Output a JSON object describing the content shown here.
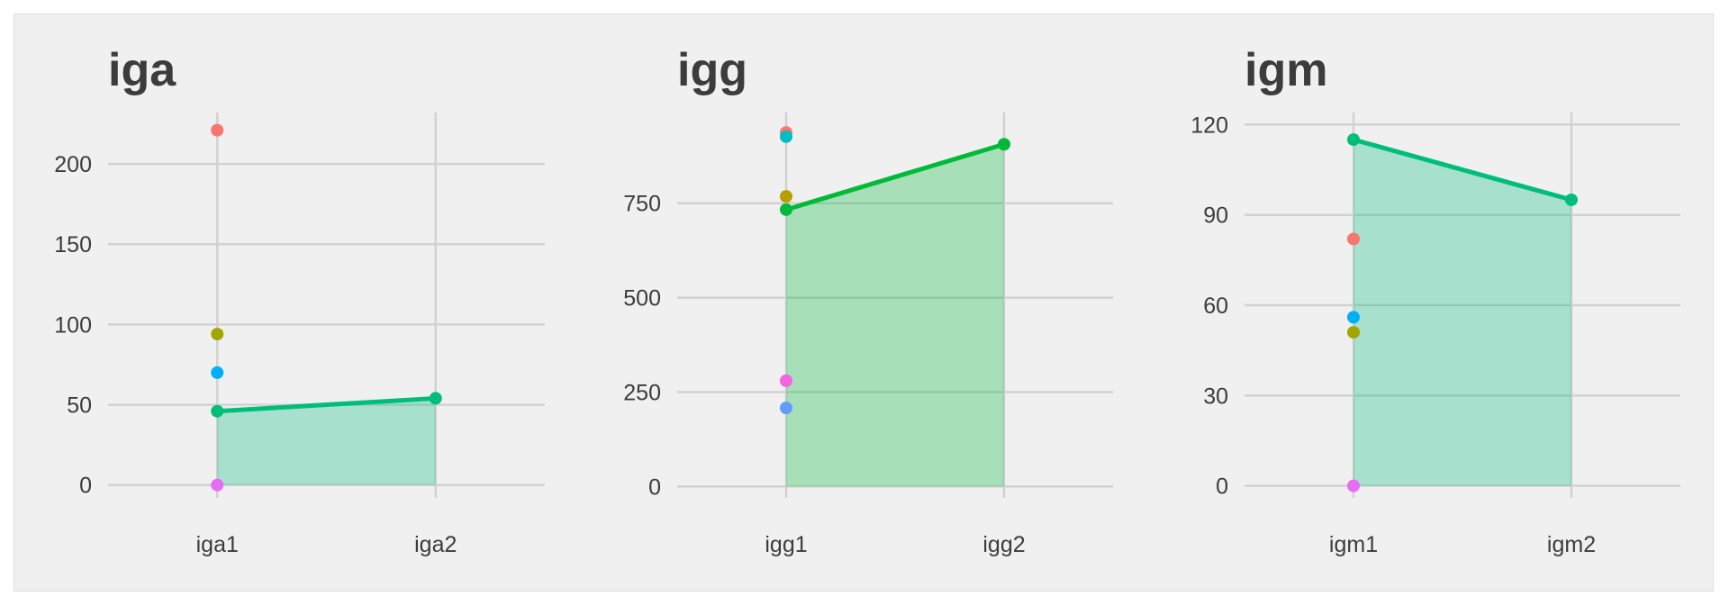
{
  "colors": {
    "background": "#f0f0f0",
    "grid": "#d2d2d2",
    "text": "#3c3c3c"
  },
  "chart_data": [
    {
      "type": "line",
      "title": "iga",
      "categories": [
        "iga1",
        "iga2"
      ],
      "ylim": [
        -8,
        232
      ],
      "yticks": [
        0,
        50,
        100,
        150,
        200
      ],
      "ytick_labels": [
        "0",
        "50",
        "100",
        "150",
        "200"
      ],
      "grid": true,
      "line": {
        "values": [
          46,
          54
        ],
        "color": "#00be79",
        "fill_color": "#00be79"
      },
      "points": [
        {
          "category": "iga1",
          "value": 221,
          "color": "#f8766d"
        },
        {
          "category": "iga1",
          "value": 94,
          "color": "#a3a500"
        },
        {
          "category": "iga1",
          "value": 70,
          "color": "#00b0f6"
        },
        {
          "category": "iga1",
          "value": 0,
          "color": "#e76bf3"
        }
      ]
    },
    {
      "type": "line",
      "title": "igg",
      "categories": [
        "igg1",
        "igg2"
      ],
      "ylim": [
        -30,
        990
      ],
      "yticks": [
        0,
        250,
        500,
        750
      ],
      "ytick_labels": [
        "0",
        "250",
        "500",
        "750"
      ],
      "grid": true,
      "line": {
        "values": [
          733,
          906
        ],
        "color": "#00ba38",
        "fill_color": "#00ba38"
      },
      "points": [
        {
          "category": "igg1",
          "value": 937,
          "color": "#f8766d"
        },
        {
          "category": "igg1",
          "value": 926,
          "color": "#00bfc4"
        },
        {
          "category": "igg1",
          "value": 768,
          "color": "#b79f00"
        },
        {
          "category": "igg1",
          "value": 280,
          "color": "#f564e3"
        },
        {
          "category": "igg1",
          "value": 208,
          "color": "#619cff"
        }
      ]
    },
    {
      "type": "line",
      "title": "igm",
      "categories": [
        "igm1",
        "igm2"
      ],
      "ylim": [
        -4,
        124
      ],
      "yticks": [
        0,
        30,
        60,
        90,
        120
      ],
      "ytick_labels": [
        "0",
        "30",
        "60",
        "90",
        "120"
      ],
      "grid": true,
      "line": {
        "values": [
          115,
          95
        ],
        "color": "#00be79",
        "fill_color": "#00be79"
      },
      "points": [
        {
          "category": "igm1",
          "value": 82,
          "color": "#f8766d"
        },
        {
          "category": "igm1",
          "value": 56,
          "color": "#00b0f6"
        },
        {
          "category": "igm1",
          "value": 51,
          "color": "#a3a500"
        },
        {
          "category": "igm1",
          "value": 0,
          "color": "#e76bf3"
        }
      ]
    }
  ]
}
